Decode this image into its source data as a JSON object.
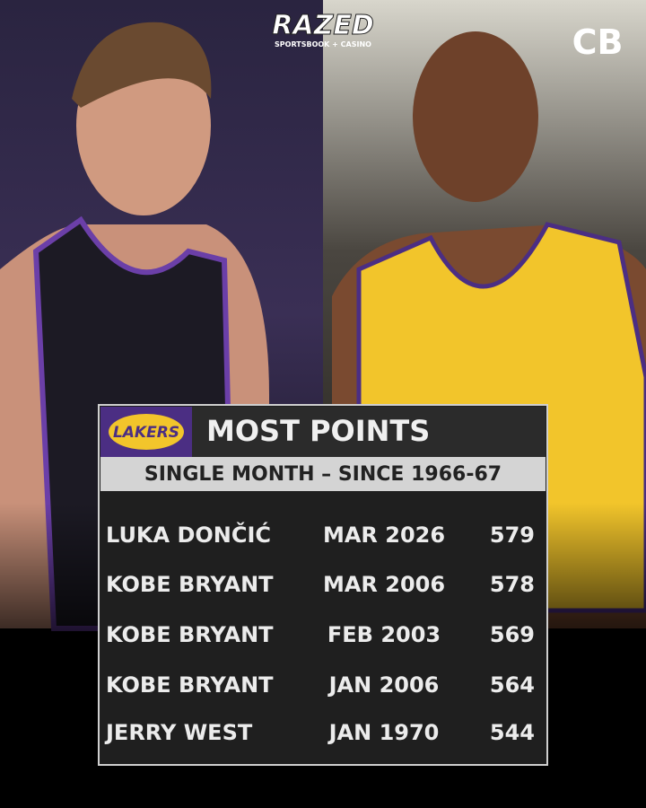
{
  "header": {
    "brand": "RAZED",
    "brand_tagline": "SPORTSBOOK + CASINO",
    "corner_logo": "CB"
  },
  "table": {
    "logo": "LAKERS",
    "title": "MOST POINTS",
    "subtitle": "SINGLE MONTH – SINCE 1966-67",
    "rows": [
      [
        "LUKA DONČIĆ",
        "MAR 2026",
        579
      ],
      [
        "KOBE BRYANT",
        "MAR 2006",
        578
      ],
      [
        "KOBE BRYANT",
        "FEB 2003",
        569
      ],
      [
        "KOBE BRYANT",
        "JAN 2006",
        564
      ],
      [
        "JERRY WEST",
        "JAN 1970",
        544
      ]
    ]
  }
}
